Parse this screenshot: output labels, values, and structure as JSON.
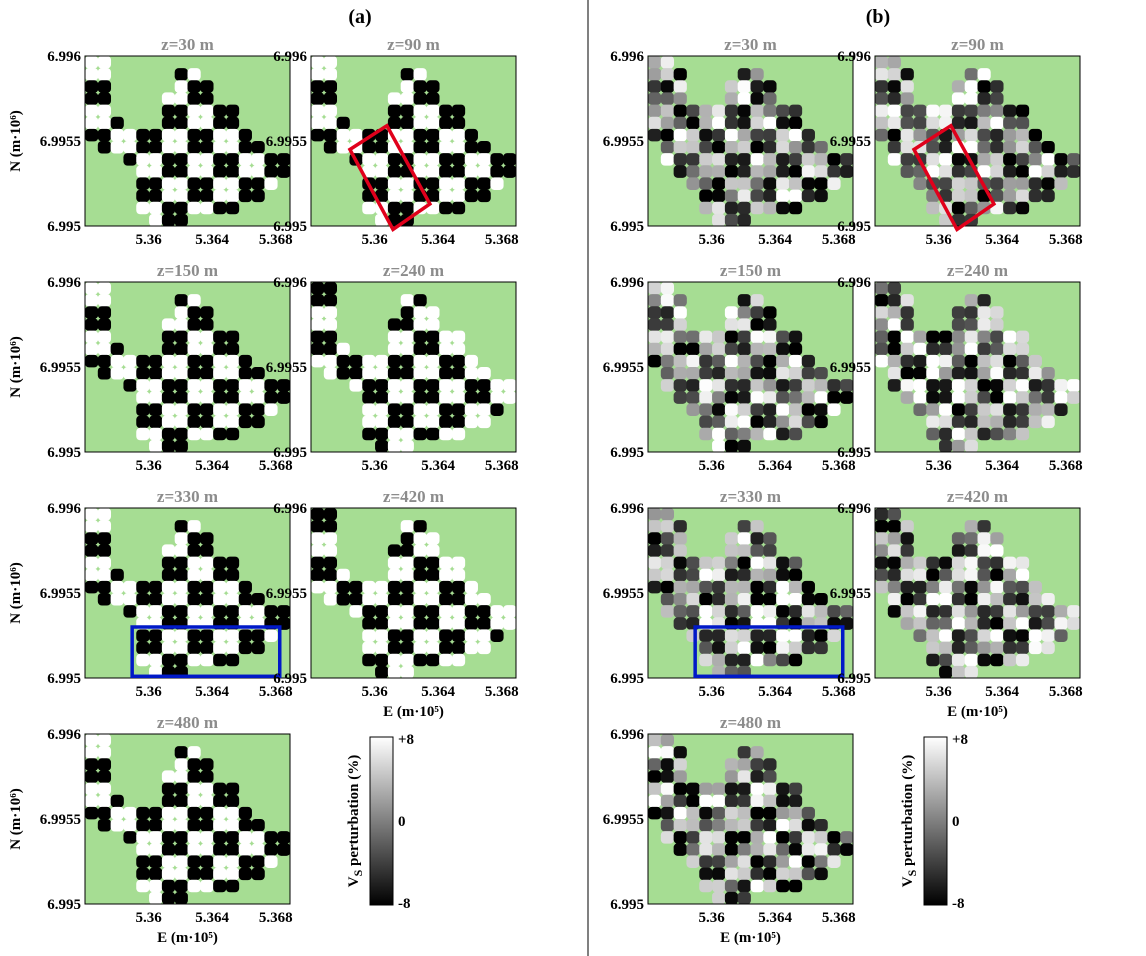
{
  "chart_data": {
    "type": "heatmap",
    "panels": [
      {
        "label": "(a)",
        "description_visible": false
      },
      {
        "label": "(b)"
      }
    ],
    "depth_titles": [
      "z=30 m",
      "z=90 m",
      "z=150 m",
      "z=240 m",
      "z=330 m",
      "z=420 m",
      "z=480 m"
    ],
    "xlabel": "E (m·10⁵)",
    "ylabel": "N (m·10⁶)",
    "xticks": [
      "5.36",
      "5.364",
      "5.368"
    ],
    "yticks": [
      "6.996",
      "6.9955",
      "6.995"
    ],
    "xticks_values": [
      5.36,
      5.364,
      5.368
    ],
    "yticks_values": [
      6.996,
      6.9955,
      6.995
    ],
    "xlim": [
      5.356,
      5.3689
    ],
    "ylim": [
      6.995,
      6.996
    ],
    "colorbar": {
      "label_prefix": "V",
      "label_sub": "S",
      "label_suffix": " perturbation (%)",
      "ticks": [
        "+8",
        "0",
        "-8"
      ],
      "range": [
        -8,
        8
      ],
      "colormap": "gray"
    },
    "background_color": "#a6dd93",
    "annotations": [
      {
        "type": "rotated-rect",
        "color": "#e0001b",
        "depth": "z=90 m"
      },
      {
        "type": "rect",
        "color": "#0019c8",
        "depth": "z=330 m"
      }
    ],
    "checkerboard": {
      "cell_size_E_1e5": 0.0013,
      "cell_size_N_1e6": 0.00012,
      "amplitude_percent": 8
    }
  }
}
